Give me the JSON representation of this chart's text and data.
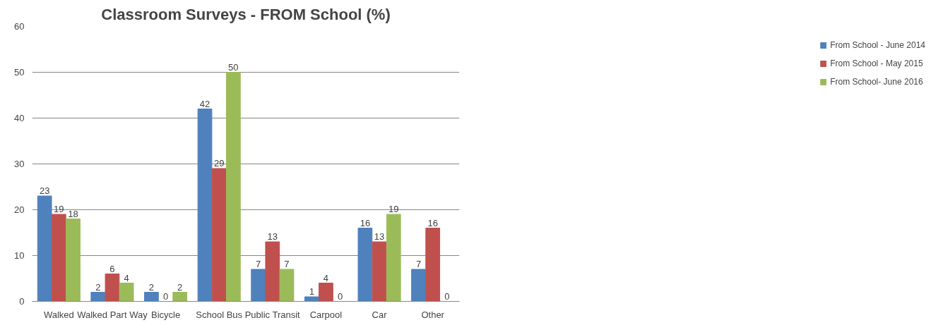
{
  "chart_data": {
    "type": "bar",
    "title": "Classroom Surveys - FROM School (%)",
    "categories": [
      "Walked",
      "Walked Part Way",
      "Bicycle",
      "School Bus",
      "Public Transit",
      "Carpool",
      "Car",
      "Other"
    ],
    "series": [
      {
        "name": "From School - June 2014",
        "color": "#4f81bd",
        "values": [
          23,
          2,
          2,
          42,
          7,
          1,
          16,
          7
        ]
      },
      {
        "name": "From School - May 2015",
        "color": "#c0504d",
        "values": [
          19,
          6,
          0,
          29,
          13,
          4,
          13,
          16
        ]
      },
      {
        "name": "From School- June 2016",
        "color": "#9bbb59",
        "values": [
          18,
          4,
          2,
          50,
          7,
          0,
          19,
          0
        ]
      }
    ],
    "ylim": [
      0,
      60
    ],
    "yticks": [
      0,
      10,
      20,
      30,
      40,
      50,
      60
    ],
    "grid": "y",
    "legend": "right",
    "data_labels": true
  }
}
